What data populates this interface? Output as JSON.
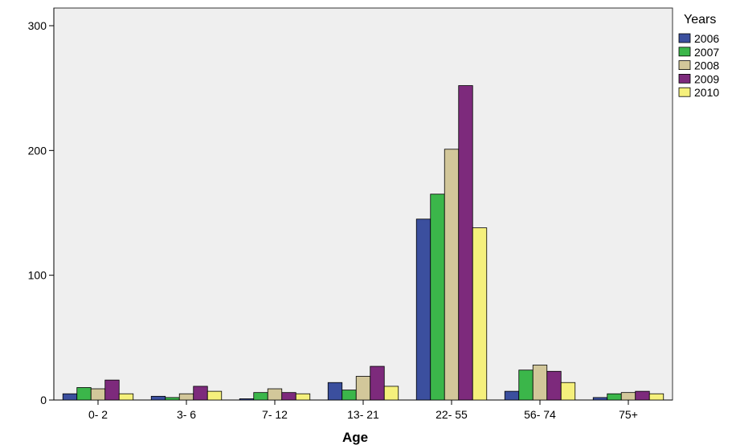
{
  "chart_data": {
    "type": "bar",
    "title": "",
    "xlabel": "Age",
    "ylabel": "",
    "ylim": [
      0,
      300
    ],
    "yticks": [
      0,
      100,
      200,
      300
    ],
    "grid": false,
    "legend": {
      "title": "Years",
      "placement": "right"
    },
    "plot_background": "#efefef",
    "categories": [
      "0- 2",
      "3- 6",
      "7- 12",
      "13- 21",
      "22- 55",
      "56- 74",
      "75+"
    ],
    "series": [
      {
        "name": "2006",
        "color": "#3b4f9e",
        "values": [
          5,
          3,
          1,
          14,
          145,
          7,
          2
        ]
      },
      {
        "name": "2007",
        "color": "#3bb64a",
        "values": [
          10,
          2,
          6,
          8,
          165,
          24,
          5
        ]
      },
      {
        "name": "2008",
        "color": "#d2c79a",
        "values": [
          9,
          5,
          9,
          19,
          201,
          28,
          6
        ]
      },
      {
        "name": "2009",
        "color": "#7d2a7c",
        "values": [
          16,
          11,
          6,
          27,
          252,
          23,
          7
        ]
      },
      {
        "name": "2010",
        "color": "#f5f07c",
        "values": [
          5,
          7,
          5,
          11,
          138,
          14,
          5
        ]
      }
    ]
  }
}
